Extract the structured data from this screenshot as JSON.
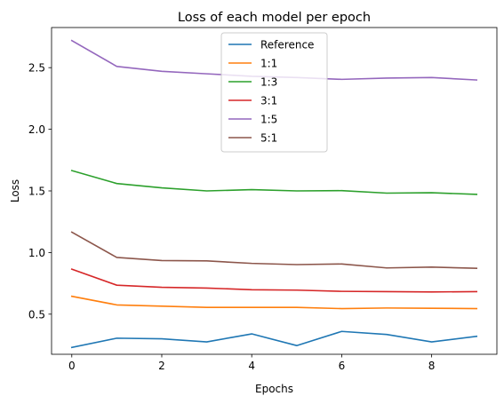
{
  "chart_data": {
    "type": "line",
    "title": "Loss of each model per epoch",
    "xlabel": "Epochs",
    "ylabel": "Loss",
    "x": [
      0,
      1,
      2,
      3,
      4,
      5,
      6,
      7,
      8,
      9
    ],
    "xlim": [
      -0.45,
      9.45
    ],
    "ylim": [
      0.1745,
      2.8255
    ],
    "xticks": [
      0,
      2,
      4,
      6,
      8
    ],
    "xtick_labels": [
      "0",
      "2",
      "4",
      "6",
      "8"
    ],
    "yticks": [
      0.5,
      1.0,
      1.5,
      2.0,
      2.5
    ],
    "ytick_labels": [
      "0.5",
      "1.0",
      "1.5",
      "2.0",
      "2.5"
    ],
    "grid": false,
    "legend_position": "top-center",
    "series": [
      {
        "name": "Reference",
        "color": "#1f77b4",
        "values": [
          0.23,
          0.305,
          0.3,
          0.275,
          0.34,
          0.245,
          0.36,
          0.335,
          0.275,
          0.32
        ]
      },
      {
        "name": "1:1",
        "color": "#ff7f0e",
        "values": [
          0.645,
          0.575,
          0.565,
          0.555,
          0.555,
          0.555,
          0.545,
          0.55,
          0.548,
          0.545
        ]
      },
      {
        "name": "1:3",
        "color": "#2ca02c",
        "values": [
          1.665,
          1.56,
          1.525,
          1.5,
          1.51,
          1.5,
          1.502,
          1.482,
          1.485,
          1.472
        ]
      },
      {
        "name": "3:1",
        "color": "#d62728",
        "values": [
          0.865,
          0.735,
          0.718,
          0.712,
          0.698,
          0.695,
          0.685,
          0.683,
          0.68,
          0.683
        ]
      },
      {
        "name": "1:5",
        "color": "#9467bd",
        "values": [
          2.72,
          2.51,
          2.47,
          2.45,
          2.43,
          2.42,
          2.405,
          2.415,
          2.42,
          2.4
        ]
      },
      {
        "name": "5:1",
        "color": "#8c564b",
        "values": [
          1.165,
          0.96,
          0.935,
          0.932,
          0.912,
          0.902,
          0.907,
          0.875,
          0.882,
          0.872
        ]
      }
    ]
  }
}
